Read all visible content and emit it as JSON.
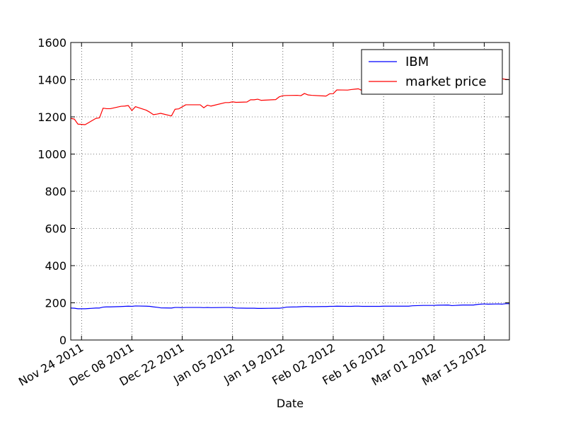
{
  "chart_data": {
    "type": "line",
    "xlabel": "Date",
    "ylabel": "",
    "title": "",
    "x_start": "2011-11-21",
    "x_end": "2012-03-22",
    "x_ticks": [
      {
        "date": "2011-11-24",
        "label": "Nov 24 2011"
      },
      {
        "date": "2011-12-08",
        "label": "Dec 08 2011"
      },
      {
        "date": "2011-12-22",
        "label": "Dec 22 2011"
      },
      {
        "date": "2012-01-05",
        "label": "Jan 05 2012"
      },
      {
        "date": "2012-01-19",
        "label": "Jan 19 2012"
      },
      {
        "date": "2012-02-02",
        "label": "Feb 02 2012"
      },
      {
        "date": "2012-02-16",
        "label": "Feb 16 2012"
      },
      {
        "date": "2012-03-01",
        "label": "Mar 01 2012"
      },
      {
        "date": "2012-03-15",
        "label": "Mar 15 2012"
      }
    ],
    "ylim": [
      0,
      1600
    ],
    "y_ticks": [
      "0",
      "200",
      "400",
      "600",
      "800",
      "1000",
      "1200",
      "1400",
      "1600"
    ],
    "grid": true,
    "legend_position": "top-right",
    "series": [
      {
        "name": "IBM",
        "color": "#0000ff",
        "points": [
          [
            "2011-11-21",
            172
          ],
          [
            "2011-11-22",
            171
          ],
          [
            "2011-11-23",
            168
          ],
          [
            "2011-11-25",
            168
          ],
          [
            "2011-11-28",
            172
          ],
          [
            "2011-11-29",
            172
          ],
          [
            "2011-11-30",
            177
          ],
          [
            "2011-12-01",
            178
          ],
          [
            "2011-12-02",
            178
          ],
          [
            "2011-12-05",
            180
          ],
          [
            "2011-12-06",
            181
          ],
          [
            "2011-12-07",
            182
          ],
          [
            "2011-12-08",
            181
          ],
          [
            "2011-12-09",
            183
          ],
          [
            "2011-12-12",
            182
          ],
          [
            "2011-12-13",
            181
          ],
          [
            "2011-12-14",
            178
          ],
          [
            "2011-12-15",
            176
          ],
          [
            "2011-12-16",
            173
          ],
          [
            "2011-12-19",
            172
          ],
          [
            "2011-12-20",
            175
          ],
          [
            "2011-12-21",
            175
          ],
          [
            "2011-12-22",
            174
          ],
          [
            "2011-12-23",
            175
          ],
          [
            "2011-12-27",
            175
          ],
          [
            "2011-12-28",
            174
          ],
          [
            "2011-12-29",
            175
          ],
          [
            "2011-12-30",
            174
          ],
          [
            "2012-01-03",
            175
          ],
          [
            "2012-01-04",
            175
          ],
          [
            "2012-01-05",
            174
          ],
          [
            "2012-01-06",
            172
          ],
          [
            "2012-01-09",
            171
          ],
          [
            "2012-01-10",
            171
          ],
          [
            "2012-01-11",
            171
          ],
          [
            "2012-01-12",
            170
          ],
          [
            "2012-01-13",
            170
          ],
          [
            "2012-01-17",
            171
          ],
          [
            "2012-01-18",
            171
          ],
          [
            "2012-01-19",
            173
          ],
          [
            "2012-01-20",
            177
          ],
          [
            "2012-01-23",
            178
          ],
          [
            "2012-01-24",
            179
          ],
          [
            "2012-01-25",
            180
          ],
          [
            "2012-01-26",
            180
          ],
          [
            "2012-01-27",
            179
          ],
          [
            "2012-01-30",
            180
          ],
          [
            "2012-01-31",
            180
          ],
          [
            "2012-02-01",
            181
          ],
          [
            "2012-02-02",
            181
          ],
          [
            "2012-02-03",
            182
          ],
          [
            "2012-02-06",
            181
          ],
          [
            "2012-02-07",
            181
          ],
          [
            "2012-02-08",
            182
          ],
          [
            "2012-02-09",
            182
          ],
          [
            "2012-02-10",
            181
          ],
          [
            "2012-02-13",
            181
          ],
          [
            "2012-02-14",
            181
          ],
          [
            "2012-02-15",
            181
          ],
          [
            "2012-02-16",
            182
          ],
          [
            "2012-02-17",
            182
          ],
          [
            "2012-02-21",
            182
          ],
          [
            "2012-02-22",
            182
          ],
          [
            "2012-02-23",
            182
          ],
          [
            "2012-02-24",
            184
          ],
          [
            "2012-02-27",
            186
          ],
          [
            "2012-02-28",
            186
          ],
          [
            "2012-02-29",
            186
          ],
          [
            "2012-03-01",
            186
          ],
          [
            "2012-03-02",
            187
          ],
          [
            "2012-03-05",
            188
          ],
          [
            "2012-03-06",
            185
          ],
          [
            "2012-03-07",
            186
          ],
          [
            "2012-03-08",
            187
          ],
          [
            "2012-03-09",
            188
          ],
          [
            "2012-03-12",
            188
          ],
          [
            "2012-03-13",
            191
          ],
          [
            "2012-03-14",
            193
          ],
          [
            "2012-03-15",
            194
          ],
          [
            "2012-03-16",
            193
          ],
          [
            "2012-03-19",
            194
          ],
          [
            "2012-03-20",
            193
          ],
          [
            "2012-03-21",
            195
          ],
          [
            "2012-03-22",
            195
          ]
        ]
      },
      {
        "name": "market price",
        "color": "#ff0000",
        "points": [
          [
            "2011-11-21",
            1192
          ],
          [
            "2011-11-22",
            1188
          ],
          [
            "2011-11-23",
            1161
          ],
          [
            "2011-11-25",
            1158
          ],
          [
            "2011-11-28",
            1192
          ],
          [
            "2011-11-29",
            1195
          ],
          [
            "2011-11-30",
            1247
          ],
          [
            "2011-12-01",
            1244
          ],
          [
            "2011-12-02",
            1244
          ],
          [
            "2011-12-05",
            1257
          ],
          [
            "2011-12-06",
            1258
          ],
          [
            "2011-12-07",
            1261
          ],
          [
            "2011-12-08",
            1234
          ],
          [
            "2011-12-09",
            1255
          ],
          [
            "2011-12-12",
            1236
          ],
          [
            "2011-12-13",
            1225
          ],
          [
            "2011-12-14",
            1212
          ],
          [
            "2011-12-15",
            1215
          ],
          [
            "2011-12-16",
            1219
          ],
          [
            "2011-12-19",
            1205
          ],
          [
            "2011-12-20",
            1241
          ],
          [
            "2011-12-21",
            1243
          ],
          [
            "2011-12-22",
            1254
          ],
          [
            "2011-12-23",
            1265
          ],
          [
            "2011-12-27",
            1265
          ],
          [
            "2011-12-28",
            1249
          ],
          [
            "2011-12-29",
            1263
          ],
          [
            "2011-12-30",
            1258
          ],
          [
            "2012-01-03",
            1277
          ],
          [
            "2012-01-04",
            1277
          ],
          [
            "2012-01-05",
            1281
          ],
          [
            "2012-01-06",
            1278
          ],
          [
            "2012-01-09",
            1280
          ],
          [
            "2012-01-10",
            1292
          ],
          [
            "2012-01-11",
            1292
          ],
          [
            "2012-01-12",
            1295
          ],
          [
            "2012-01-13",
            1289
          ],
          [
            "2012-01-17",
            1293
          ],
          [
            "2012-01-18",
            1308
          ],
          [
            "2012-01-19",
            1314
          ],
          [
            "2012-01-20",
            1315
          ],
          [
            "2012-01-23",
            1316
          ],
          [
            "2012-01-24",
            1314
          ],
          [
            "2012-01-25",
            1326
          ],
          [
            "2012-01-26",
            1318
          ],
          [
            "2012-01-27",
            1316
          ],
          [
            "2012-01-30",
            1313
          ],
          [
            "2012-01-31",
            1312
          ],
          [
            "2012-02-01",
            1324
          ],
          [
            "2012-02-02",
            1325
          ],
          [
            "2012-02-03",
            1345
          ],
          [
            "2012-02-06",
            1344
          ],
          [
            "2012-02-07",
            1347
          ],
          [
            "2012-02-08",
            1349
          ],
          [
            "2012-02-09",
            1351
          ],
          [
            "2012-02-10",
            1342
          ],
          [
            "2012-02-13",
            1351
          ],
          [
            "2012-02-14",
            1350
          ],
          [
            "2012-02-15",
            1343
          ],
          [
            "2012-02-16",
            1358
          ],
          [
            "2012-02-17",
            1361
          ],
          [
            "2012-02-21",
            1362
          ],
          [
            "2012-02-22",
            1357
          ],
          [
            "2012-02-23",
            1363
          ],
          [
            "2012-02-24",
            1366
          ],
          [
            "2012-02-27",
            1367
          ],
          [
            "2012-02-28",
            1372
          ],
          [
            "2012-02-29",
            1366
          ],
          [
            "2012-03-01",
            1374
          ],
          [
            "2012-03-02",
            1369
          ],
          [
            "2012-03-05",
            1364
          ],
          [
            "2012-03-06",
            1343
          ],
          [
            "2012-03-07",
            1352
          ],
          [
            "2012-03-08",
            1366
          ],
          [
            "2012-03-09",
            1370
          ],
          [
            "2012-03-12",
            1371
          ],
          [
            "2012-03-13",
            1395
          ],
          [
            "2012-03-14",
            1394
          ],
          [
            "2012-03-15",
            1402
          ],
          [
            "2012-03-16",
            1404
          ],
          [
            "2012-03-19",
            1409
          ],
          [
            "2012-03-20",
            1405
          ],
          [
            "2012-03-21",
            1402
          ],
          [
            "2012-03-22",
            1400
          ]
        ]
      }
    ]
  }
}
